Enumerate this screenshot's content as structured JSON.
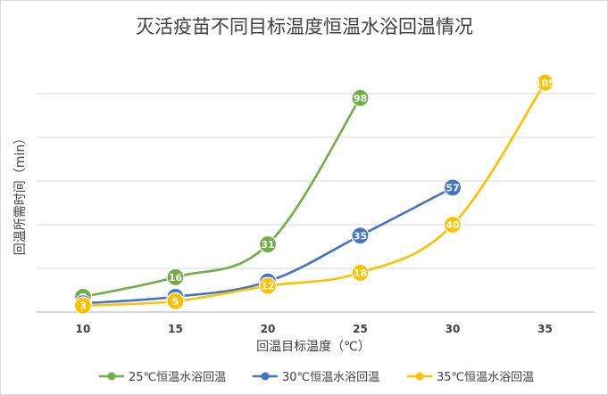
{
  "chart_data": {
    "type": "line",
    "title": "灭活疫苗不同目标温度恒温水浴回温情况",
    "xlabel": "回温目标温度（℃）",
    "ylabel": "回温所需时间（min）",
    "x": [
      10,
      15,
      20,
      25,
      30,
      35
    ],
    "xticks": [
      "10",
      "15",
      "20",
      "25",
      "30",
      "35"
    ],
    "ylim": [
      0,
      110
    ],
    "y_gridlines": [
      0,
      20,
      40,
      60,
      80,
      100
    ],
    "grid": true,
    "legend_position": "bottom",
    "series": [
      {
        "name": "25℃恒温水浴回温",
        "color": "#70ad47",
        "points": [
          [
            10,
            7
          ],
          [
            15,
            16
          ],
          [
            20,
            31
          ],
          [
            25,
            98
          ]
        ],
        "labels": [
          "7",
          "16",
          "31",
          "98"
        ]
      },
      {
        "name": "30℃恒温水浴回温",
        "color": "#4472c4",
        "points": [
          [
            10,
            4
          ],
          [
            15,
            7
          ],
          [
            20,
            14
          ],
          [
            25,
            35
          ],
          [
            30,
            57
          ]
        ],
        "labels": [
          "",
          "7",
          "14",
          "35",
          "57"
        ]
      },
      {
        "name": "35℃恒温水浴回温",
        "color": "#ffc000",
        "points": [
          [
            10,
            3
          ],
          [
            15,
            5
          ],
          [
            20,
            12
          ],
          [
            25,
            18
          ],
          [
            30,
            40
          ],
          [
            35,
            105
          ]
        ],
        "labels": [
          "3",
          "5",
          "12",
          "18",
          "40",
          "105"
        ]
      }
    ]
  }
}
